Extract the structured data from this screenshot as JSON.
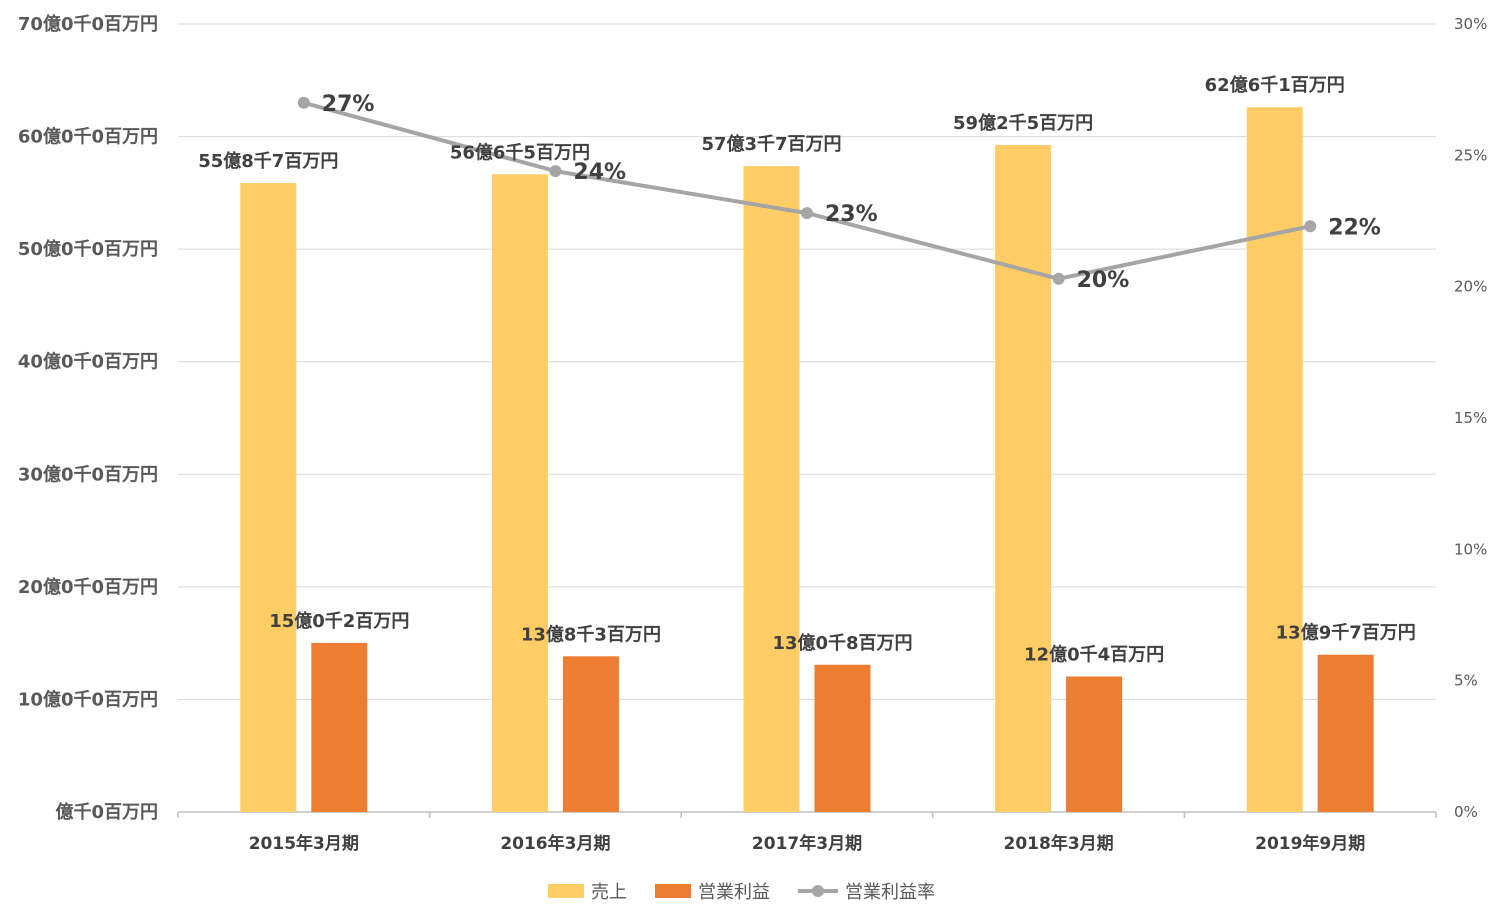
{
  "chart_data": {
    "type": "bar",
    "categories": [
      "2015年3月期",
      "2016年3月期",
      "2017年3月期",
      "2018年3月期",
      "2019年9月期"
    ],
    "series": [
      {
        "name": "売上",
        "type": "bar",
        "axis": "left",
        "color": "#FFCC66",
        "values": [
          5587,
          5665,
          5737,
          5925,
          6261
        ],
        "labels": [
          "55億8千7百万円",
          "56億6千5百万円",
          "57億3千7百万円",
          "59億2千5百万円",
          "62億6千1百万円"
        ]
      },
      {
        "name": "営業利益",
        "type": "bar",
        "axis": "left",
        "color": "#ED7D31",
        "values": [
          1502,
          1383,
          1308,
          1204,
          1397
        ],
        "labels": [
          "15億0千2百万円",
          "13億8千3百万円",
          "13億0千8百万円",
          "12億0千4百万円",
          "13億9千7百万円"
        ]
      },
      {
        "name": "営業利益率",
        "type": "line",
        "axis": "right",
        "color": "#A5A5A5",
        "values": [
          27,
          24.4,
          22.8,
          20.3,
          22.3
        ],
        "labels": [
          "27%",
          "24%",
          "23%",
          "20%",
          "22%"
        ]
      }
    ],
    "y_left": {
      "range": [
        0,
        7000
      ],
      "ticks": [
        0,
        1000,
        2000,
        3000,
        4000,
        5000,
        6000,
        7000
      ],
      "tick_labels": [
        "億千0百万円",
        "10億0千0百万円",
        "20億0千0百万円",
        "30億0千0百万円",
        "40億0千0百万円",
        "50億0千0百万円",
        "60億0千0百万円",
        "70億0千0百万円"
      ]
    },
    "y_right": {
      "range": [
        0,
        30
      ],
      "ticks": [
        0,
        5,
        10,
        15,
        20,
        25,
        30
      ],
      "tick_labels": [
        "0%",
        "5%",
        "10%",
        "15%",
        "20%",
        "25%",
        "30%"
      ]
    },
    "grid": true,
    "legend_position": "bottom"
  }
}
